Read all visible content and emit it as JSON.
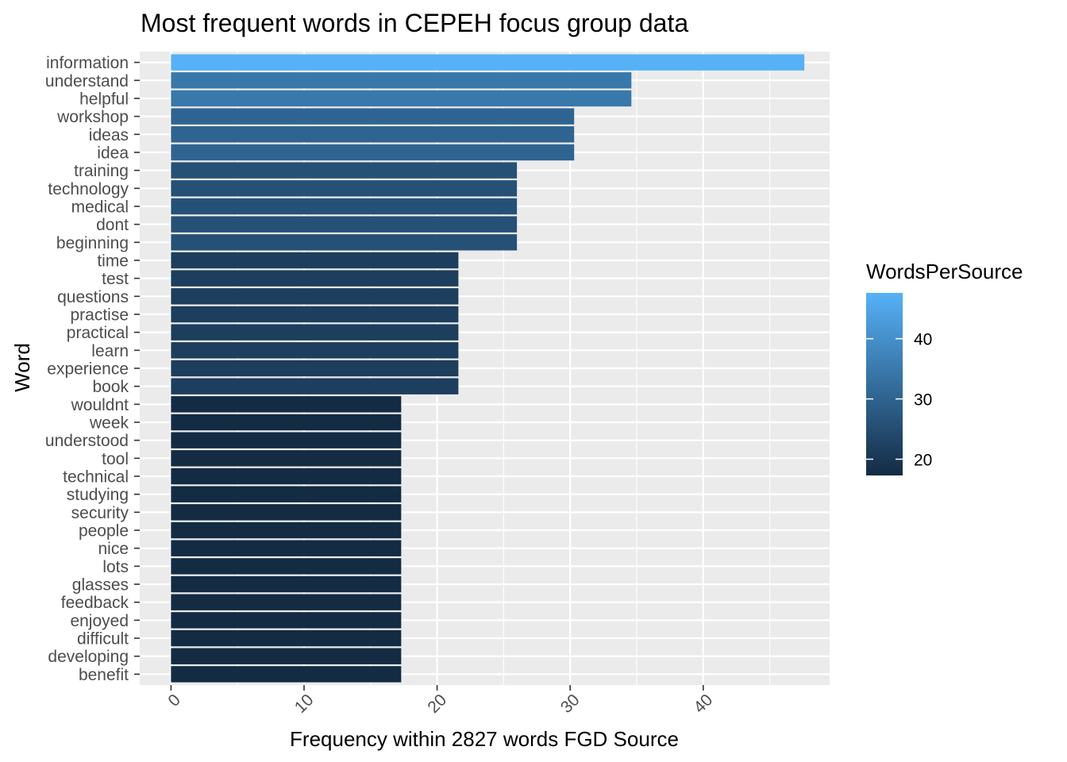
{
  "chart_data": {
    "type": "bar",
    "orientation": "horizontal",
    "title": "Most frequent words in CEPEH focus group data",
    "xlabel": "Frequency within 2827 words FGD Source",
    "ylabel": "Word",
    "xlim": [
      -2.35,
      49.5
    ],
    "x_ticks": [
      0,
      10,
      20,
      30,
      40
    ],
    "x_tick_labels": [
      "0",
      "10",
      "20",
      "30",
      "40"
    ],
    "grid": true,
    "legend": {
      "title": "WordsPerSource",
      "position": "right",
      "type": "colorbar",
      "min": 17.3,
      "max": 47.6,
      "low_color": "#132b43",
      "high_color": "#56b1f7",
      "ticks": [
        20,
        30,
        40
      ],
      "tick_labels": [
        "20",
        "30",
        "40"
      ]
    },
    "categories": [
      "information",
      "understand",
      "helpful",
      "workshop",
      "ideas",
      "idea",
      "training",
      "technology",
      "medical",
      "dont",
      "beginning",
      "time",
      "test",
      "questions",
      "practise",
      "practical",
      "learn",
      "experience",
      "book",
      "wouldnt",
      "week",
      "understood",
      "tool",
      "technical",
      "studying",
      "security",
      "people",
      "nice",
      "lots",
      "glasses",
      "feedback",
      "enjoyed",
      "difficult",
      "developing",
      "benefit"
    ],
    "values": [
      47.6,
      34.6,
      34.6,
      30.3,
      30.3,
      30.3,
      26.0,
      26.0,
      26.0,
      26.0,
      26.0,
      21.6,
      21.6,
      21.6,
      21.6,
      21.6,
      21.6,
      21.6,
      21.6,
      17.3,
      17.3,
      17.3,
      17.3,
      17.3,
      17.3,
      17.3,
      17.3,
      17.3,
      17.3,
      17.3,
      17.3,
      17.3,
      17.3,
      17.3,
      17.3
    ]
  }
}
